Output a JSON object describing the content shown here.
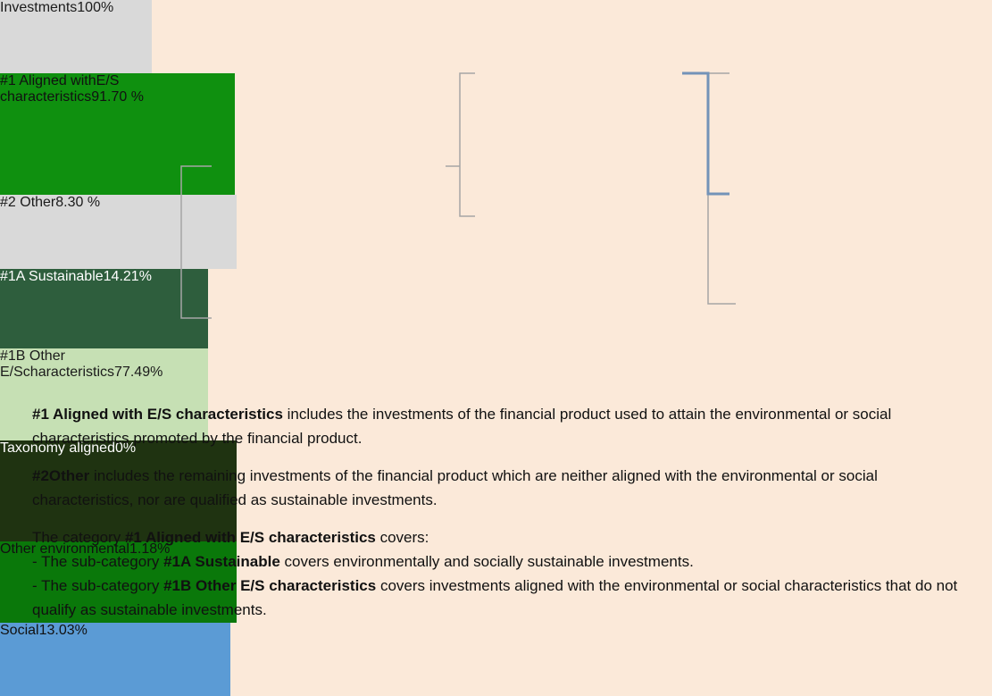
{
  "nodes": [
    {
      "lines": [
        "Investments",
        "100%"
      ]
    },
    {
      "lines": [
        "#1 Aligned with",
        "E/S characteristics",
        "91.70 %"
      ]
    },
    {
      "lines": [
        "#2 Other",
        "8.30 %"
      ]
    },
    {
      "lines": [
        "#1A Sustainable",
        "14.21%"
      ]
    },
    {
      "lines": [
        "#1B Other E/S",
        "characteristics",
        "77.49%"
      ]
    },
    {
      "lines": [
        "Taxonomy aligned",
        "0%"
      ]
    },
    {
      "lines": [
        "Other environmental",
        "1.18%"
      ]
    },
    {
      "lines": [
        "Social",
        "13.03%"
      ]
    }
  ],
  "paragraphs": [
    [
      [
        {
          "text": "#1 Aligned with E/S characteristics",
          "bold": true
        },
        {
          "text": " includes the investments of the financial product used to attain the environmental or social characteristics promoted by the financial product.",
          "bold": false
        }
      ]
    ],
    [
      [
        {
          "text": "#2Other",
          "bold": true
        },
        {
          "text": " includes the remaining investments of the financial product which are neither aligned with the environmental or social characteristics, nor are qualified as sustainable investments.",
          "bold": false
        }
      ]
    ],
    [
      [
        {
          "text": "The category ",
          "bold": false
        },
        {
          "text": "#1 Aligned with E/S characteristics",
          "bold": true
        },
        {
          "text": " covers:",
          "bold": false
        }
      ],
      [
        {
          "text": "- The sub-category ",
          "bold": false
        },
        {
          "text": "#1A Sustainable",
          "bold": true
        },
        {
          "text": " covers environmentally and socially sustainable investments.",
          "bold": false
        }
      ],
      [
        {
          "text": "- The sub-category ",
          "bold": false
        },
        {
          "text": "#1B Other E/S characteristics",
          "bold": true
        },
        {
          "text": " covers investments aligned with the environmental or social characteristics that do not qualify as sustainable investments.",
          "bold": false
        }
      ]
    ]
  ]
}
